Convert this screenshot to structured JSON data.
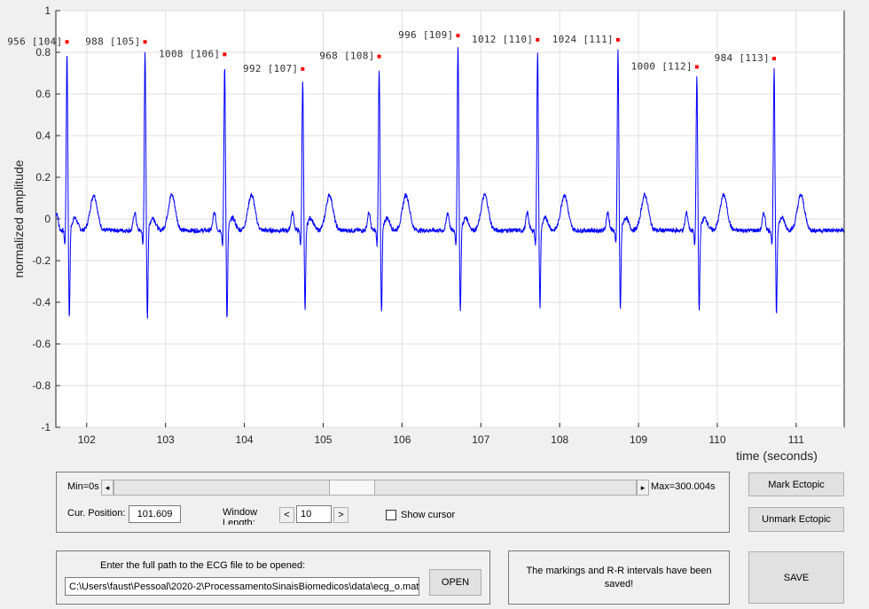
{
  "chart_data": {
    "type": "line",
    "xlabel": "time (seconds)",
    "ylabel": "normalized amplitude",
    "xlim": [
      101.609,
      111.609
    ],
    "ylim": [
      -1,
      1
    ],
    "xticks": [
      102,
      103,
      104,
      105,
      106,
      107,
      108,
      109,
      110,
      111
    ],
    "yticks": [
      -1,
      -0.8,
      -0.6,
      -0.4,
      -0.2,
      0,
      0.2,
      0.4,
      0.6,
      0.8,
      1
    ],
    "ytick_labels": [
      "-1",
      "-0.8",
      "-0.6",
      "-0.4",
      "-0.2",
      "0",
      "0.2",
      "0.4",
      "0.6",
      "0.8",
      "1"
    ],
    "grid": true,
    "line_color": "#0000ff",
    "marker_color": "#ff0000",
    "peaks": [
      {
        "t": 101.75,
        "y": 0.85,
        "label": "956 [104]"
      },
      {
        "t": 102.74,
        "y": 0.85,
        "label": "988 [105]"
      },
      {
        "t": 103.75,
        "y": 0.79,
        "label": "1008 [106]"
      },
      {
        "t": 104.74,
        "y": 0.72,
        "label": "992 [107]"
      },
      {
        "t": 105.71,
        "y": 0.78,
        "label": "968 [108]"
      },
      {
        "t": 106.71,
        "y": 0.88,
        "label": "996 [109]"
      },
      {
        "t": 107.72,
        "y": 0.86,
        "label": "1012 [110]"
      },
      {
        "t": 108.74,
        "y": 0.86,
        "label": "1024 [111]"
      },
      {
        "t": 109.74,
        "y": 0.73,
        "label": "1000 [112]"
      },
      {
        "t": 110.72,
        "y": 0.77,
        "label": "984 [113]"
      }
    ],
    "s_depths": [
      -0.48,
      -0.48,
      -0.49,
      -0.45,
      -0.46,
      -0.45,
      -0.43,
      -0.44,
      -0.45,
      -0.46
    ]
  },
  "controls": {
    "min_label": "Min=0s",
    "max_label": "Max=300.004s",
    "slider_fraction": 0.339,
    "cur_position_label": "Cur. Position:",
    "cur_position_value": "101.609",
    "window_label_line1": "Window",
    "window_label_line2": "Length:",
    "window_value": "10",
    "dec_label": "<",
    "inc_label": ">",
    "show_cursor_label": "Show cursor"
  },
  "buttons": {
    "mark_ectopic": "Mark Ectopic",
    "unmark_ectopic": "Unmark Ectopic",
    "open": "OPEN",
    "save": "SAVE"
  },
  "file_panel": {
    "prompt": "Enter the full path to the ECG file to be opened:",
    "path": "C:\\Users\\faust\\Pessoal\\2020-2\\ProcessamentoSinaisBiomedicos\\data\\ecg_o.mat"
  },
  "status": {
    "message": "The markings and R-R intervals have been saved!"
  }
}
